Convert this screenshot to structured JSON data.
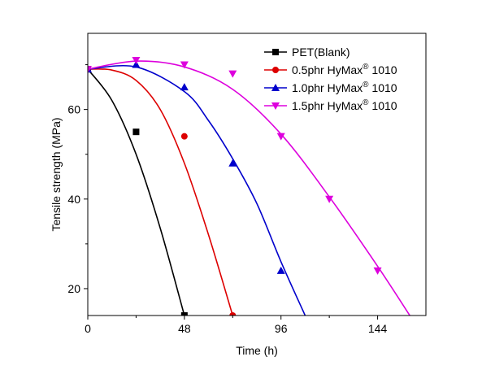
{
  "chart_data": {
    "type": "line",
    "xlabel": "Time (h)",
    "ylabel": "Tensile strength (MPa)",
    "xlim": [
      0,
      168
    ],
    "ylim": [
      14,
      77
    ],
    "xticks": [
      0,
      48,
      96,
      144
    ],
    "yticks": [
      20,
      40,
      60
    ],
    "grid": false,
    "legend_position": "top-right",
    "series": [
      {
        "name": "PET(Blank)",
        "legend_main": "PET(Blank)",
        "legend_sup": "",
        "legend_tail": "",
        "color": "#000000",
        "marker": "square",
        "points": [
          [
            0,
            69
          ],
          [
            24,
            55
          ],
          [
            48,
            14
          ]
        ],
        "fit": [
          [
            0,
            69
          ],
          [
            12,
            62
          ],
          [
            24,
            50
          ],
          [
            36,
            33.5
          ],
          [
            48,
            14
          ]
        ]
      },
      {
        "name": "0.5phr HyMax® 1010",
        "legend_main": "0.5phr HyMax",
        "legend_sup": "®",
        "legend_tail": " 1010",
        "color": "#dd0000",
        "marker": "circle",
        "points": [
          [
            0,
            69
          ],
          [
            48,
            54
          ],
          [
            72,
            14
          ]
        ],
        "fit": [
          [
            0,
            69
          ],
          [
            12,
            68.8
          ],
          [
            24,
            66.5
          ],
          [
            36,
            60
          ],
          [
            48,
            48
          ],
          [
            60,
            32
          ],
          [
            72,
            14
          ]
        ]
      },
      {
        "name": "1.0phr HyMax® 1010",
        "legend_main": "1.0phr HyMax",
        "legend_sup": "®",
        "legend_tail": " 1010",
        "color": "#0000cc",
        "marker": "triangle-up",
        "points": [
          [
            0,
            69
          ],
          [
            24,
            70
          ],
          [
            48,
            65
          ],
          [
            72,
            48
          ],
          [
            96,
            24
          ]
        ],
        "fit": [
          [
            0,
            69
          ],
          [
            24,
            69.5
          ],
          [
            48,
            64
          ],
          [
            60,
            57.5
          ],
          [
            72,
            49
          ],
          [
            84,
            39
          ],
          [
            96,
            26
          ],
          [
            108,
            14
          ]
        ]
      },
      {
        "name": "1.5phr HyMax® 1010",
        "legend_main": "1.5phr HyMax",
        "legend_sup": "®",
        "legend_tail": " 1010",
        "color": "#dd00dd",
        "marker": "triangle-down",
        "points": [
          [
            0,
            69
          ],
          [
            24,
            71
          ],
          [
            48,
            70
          ],
          [
            72,
            68
          ],
          [
            96,
            54
          ],
          [
            120,
            40
          ],
          [
            144,
            24
          ]
        ],
        "fit": [
          [
            0,
            69
          ],
          [
            24,
            70.8
          ],
          [
            48,
            69.5
          ],
          [
            72,
            64.5
          ],
          [
            96,
            54.5
          ],
          [
            120,
            40.5
          ],
          [
            144,
            25
          ],
          [
            160,
            14
          ]
        ]
      }
    ]
  }
}
